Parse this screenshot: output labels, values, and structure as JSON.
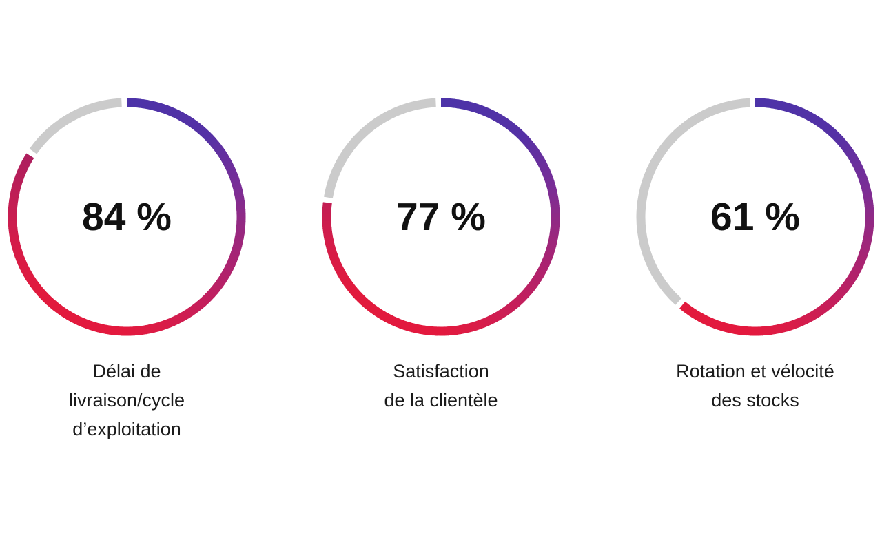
{
  "page": {
    "background": "#ffffff",
    "text_color": "#1b1b1b",
    "value_text_color": "#111111"
  },
  "chart_data": {
    "type": "donut",
    "unit": "%",
    "legend": "none",
    "remainder_color": "#CBCBCB",
    "gap_degrees": 2.6,
    "start_angle_deg": 0,
    "direction": "clockwise",
    "ring_stroke_width": 13,
    "gradient_stops": [
      {
        "angle": 0,
        "color": "#4C33A8"
      },
      {
        "angle": 45,
        "color": "#5431A5"
      },
      {
        "angle": 75,
        "color": "#7A2D96"
      },
      {
        "angle": 90,
        "color": "#8F2A86"
      },
      {
        "angle": 110,
        "color": "#A62474"
      },
      {
        "angle": 135,
        "color": "#C11F5E"
      },
      {
        "angle": 160,
        "color": "#D81C49"
      },
      {
        "angle": 180,
        "color": "#E3193E"
      },
      {
        "angle": 230,
        "color": "#E11A3D"
      },
      {
        "angle": 260,
        "color": "#D21C4A"
      },
      {
        "angle": 280,
        "color": "#C01E55"
      },
      {
        "angle": 300,
        "color": "#AE1E5D"
      },
      {
        "angle": 360,
        "color": "#9A2066"
      }
    ],
    "metrics": [
      {
        "value": 84,
        "center_label": "84 %",
        "label": "Délai de livraison/cycle d’exploitation",
        "label_lines": [
          "Délai de",
          "livraison/cycle",
          "d’exploitation"
        ]
      },
      {
        "value": 77,
        "center_label": "77 %",
        "label": "Satisfaction de la clientèle",
        "label_lines": [
          "Satisfaction",
          "de la clientèle"
        ]
      },
      {
        "value": 61,
        "center_label": "61 %",
        "label": "Rotation et vélocité des stocks",
        "label_lines": [
          "Rotation et vélocité",
          "des stocks"
        ]
      }
    ]
  }
}
